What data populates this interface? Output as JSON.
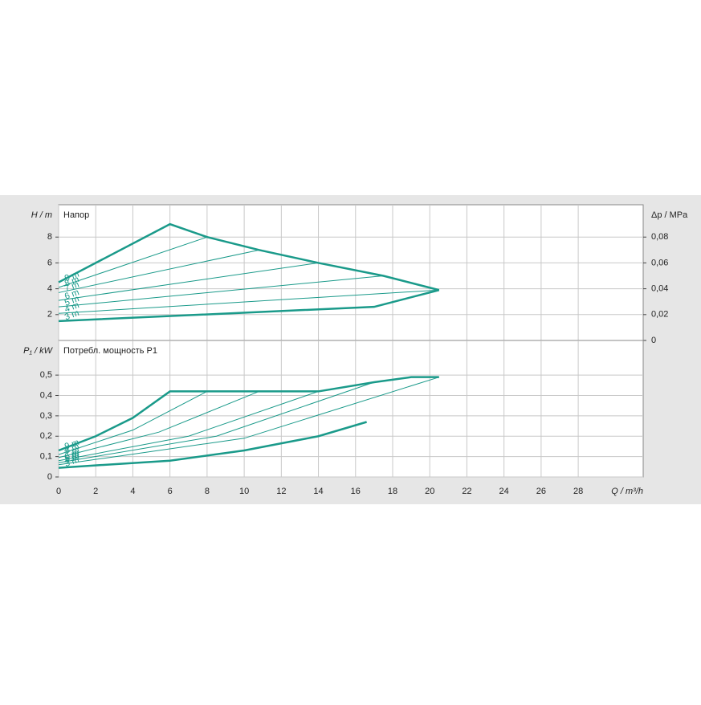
{
  "chart_data": [
    {
      "type": "line",
      "y_label": "H / m",
      "title": "Напор",
      "y2_label": "Δp / MPa",
      "xlim": [
        0,
        31.5
      ],
      "xticks": [
        0,
        2,
        4,
        6,
        8,
        10,
        12,
        14,
        16,
        18,
        20,
        22,
        24,
        26,
        28
      ],
      "ylim": [
        0,
        10.5
      ],
      "yticks": [
        2,
        4,
        6,
        8
      ],
      "y2lim": [
        0,
        0.105
      ],
      "y2ticks": [
        0,
        {
          "value": 0.02,
          "label": "0,02"
        },
        {
          "value": 0.04,
          "label": "0,04"
        },
        {
          "value": 0.06,
          "label": "0,06"
        },
        {
          "value": 0.08,
          "label": "0,08"
        }
      ],
      "grid": true,
      "series": [
        {
          "name": "9 m",
          "color": "#1a9a8a",
          "line_width": 2.5,
          "x": [
            0,
            6,
            8,
            10.8,
            14,
            17.5,
            20.5
          ],
          "values": [
            4.5,
            9,
            8,
            7,
            6,
            5,
            3.9
          ]
        },
        {
          "name": "8 m",
          "color": "#1a9a8a",
          "line_width": 1,
          "x": [
            0,
            8
          ],
          "values": [
            4.1,
            8
          ]
        },
        {
          "name": "7 m",
          "color": "#1a9a8a",
          "line_width": 1,
          "x": [
            0,
            10.8
          ],
          "values": [
            3.7,
            7
          ]
        },
        {
          "name": "6 m",
          "color": "#1a9a8a",
          "line_width": 1,
          "x": [
            0,
            14
          ],
          "values": [
            3.1,
            6
          ]
        },
        {
          "name": "5 m",
          "color": "#1a9a8a",
          "line_width": 1,
          "x": [
            0,
            17.5
          ],
          "values": [
            2.6,
            5
          ]
        },
        {
          "name": "4 m",
          "color": "#1a9a8a",
          "line_width": 1,
          "x": [
            0,
            20.5
          ],
          "values": [
            2.1,
            3.9
          ]
        },
        {
          "name": "3 m",
          "color": "#1a9a8a",
          "line_width": 2.5,
          "x": [
            0,
            17,
            20.5
          ],
          "values": [
            1.5,
            2.6,
            3.9
          ]
        }
      ]
    },
    {
      "type": "line",
      "y_label": "P₁ / kW",
      "title": "Потребл. мощность P1",
      "x_label": "Q / m³/h",
      "xlim": [
        0,
        31.5
      ],
      "xticks": [
        0,
        2,
        4,
        6,
        8,
        10,
        12,
        14,
        16,
        18,
        20,
        22,
        24,
        26,
        28
      ],
      "ylim": [
        0,
        0.67
      ],
      "yticks": [
        0,
        {
          "value": 0.1,
          "label": "0,1"
        },
        {
          "value": 0.2,
          "label": "0,2"
        },
        {
          "value": 0.3,
          "label": "0,3"
        },
        {
          "value": 0.4,
          "label": "0,4"
        },
        {
          "value": 0.5,
          "label": "0,5"
        }
      ],
      "grid": true,
      "series": [
        {
          "name": "9 m",
          "color": "#1a9a8a",
          "line_width": 2.5,
          "x": [
            0,
            2,
            4,
            6,
            14,
            17,
            19,
            20.5
          ],
          "values": [
            0.13,
            0.2,
            0.29,
            0.42,
            0.42,
            0.465,
            0.49,
            0.49
          ]
        },
        {
          "name": "8 m",
          "color": "#1a9a8a",
          "line_width": 1,
          "x": [
            0,
            4,
            8
          ],
          "values": [
            0.11,
            0.23,
            0.42
          ]
        },
        {
          "name": "7 m",
          "color": "#1a9a8a",
          "line_width": 1,
          "x": [
            0,
            5.4,
            10.8
          ],
          "values": [
            0.095,
            0.22,
            0.42
          ]
        },
        {
          "name": "6 m",
          "color": "#1a9a8a",
          "line_width": 1,
          "x": [
            0,
            7,
            14
          ],
          "values": [
            0.08,
            0.2,
            0.42
          ]
        },
        {
          "name": "5 m",
          "color": "#1a9a8a",
          "line_width": 1,
          "x": [
            0,
            8.5,
            17
          ],
          "values": [
            0.07,
            0.2,
            0.465
          ]
        },
        {
          "name": "4 m",
          "color": "#1a9a8a",
          "line_width": 1,
          "x": [
            0,
            10,
            20.5
          ],
          "values": [
            0.06,
            0.19,
            0.49
          ]
        },
        {
          "name": "3 m",
          "color": "#1a9a8a",
          "line_width": 2.5,
          "x": [
            0,
            6,
            10,
            14,
            16.6
          ],
          "values": [
            0.045,
            0.08,
            0.13,
            0.2,
            0.27
          ]
        }
      ]
    }
  ]
}
